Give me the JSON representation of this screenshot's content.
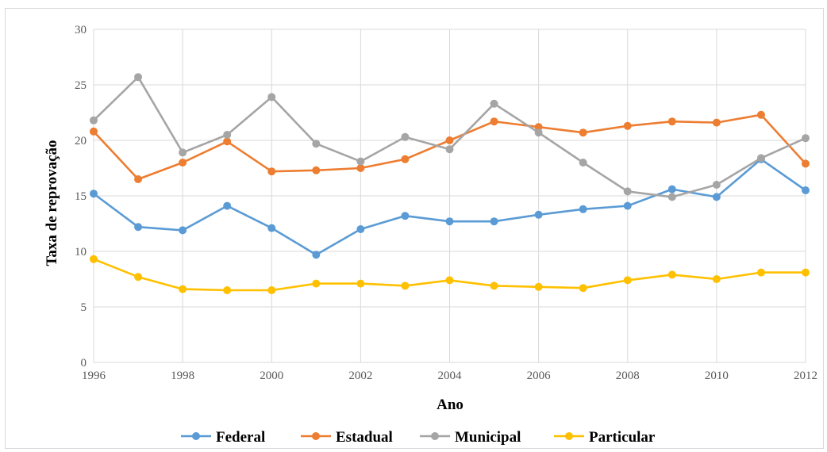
{
  "chart_data": {
    "type": "line",
    "xlabel": "Ano",
    "ylabel": "Taxa de reprovação",
    "xlim": [
      1996,
      2012
    ],
    "ylim": [
      0,
      30
    ],
    "x_ticks": [
      "1996",
      "1998",
      "2000",
      "2002",
      "2004",
      "2006",
      "2008",
      "2010",
      "2012"
    ],
    "y_ticks": [
      "0",
      "5",
      "10",
      "15",
      "20",
      "25",
      "30"
    ],
    "x": [
      1996,
      1997,
      1998,
      1999,
      2000,
      2001,
      2002,
      2003,
      2004,
      2005,
      2006,
      2007,
      2008,
      2009,
      2010,
      2011,
      2012
    ],
    "grid": true,
    "legend_position": "bottom",
    "series": [
      {
        "name": "Federal",
        "color": "#5b9bd5",
        "values": [
          15.2,
          12.2,
          11.9,
          14.1,
          12.1,
          9.7,
          12.0,
          13.2,
          12.7,
          12.7,
          13.3,
          13.8,
          14.1,
          15.6,
          14.9,
          18.3,
          15.5
        ]
      },
      {
        "name": "Estadual",
        "color": "#ed7d31",
        "values": [
          20.8,
          16.5,
          18.0,
          19.9,
          17.2,
          17.3,
          17.5,
          18.3,
          20.0,
          21.7,
          21.2,
          20.7,
          21.3,
          21.7,
          21.6,
          22.3,
          17.9
        ]
      },
      {
        "name": "Municipal",
        "color": "#a5a5a5",
        "values": [
          21.8,
          25.7,
          18.9,
          20.5,
          23.9,
          19.7,
          18.1,
          20.3,
          19.2,
          23.3,
          20.7,
          18.0,
          15.4,
          14.9,
          16.0,
          18.4,
          20.2
        ]
      },
      {
        "name": "Particular",
        "color": "#ffc000",
        "values": [
          9.3,
          7.7,
          6.6,
          6.5,
          6.5,
          7.1,
          7.1,
          6.9,
          7.4,
          6.9,
          6.8,
          6.7,
          7.4,
          7.9,
          7.5,
          8.1,
          8.1
        ]
      }
    ]
  }
}
